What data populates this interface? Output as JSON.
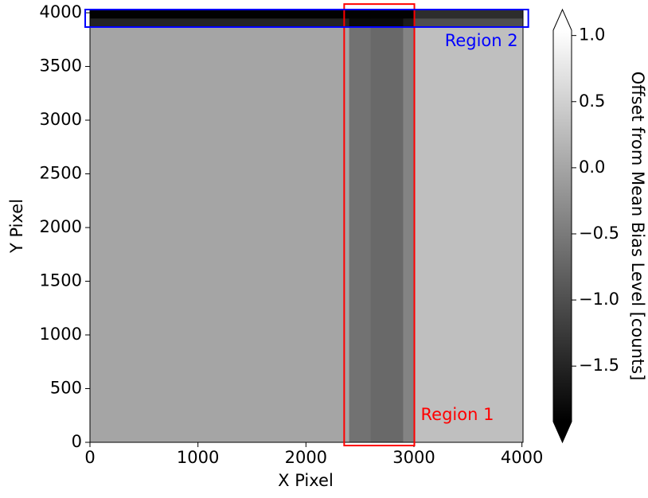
{
  "chart_data": {
    "type": "heatmap",
    "x_label": "X Pixel",
    "y_label": "Y Pixel",
    "colorbar_label": "Offset from Mean Bias Level [counts]",
    "x_edges": [
      0,
      2400,
      2600,
      2900,
      3000,
      4010
    ],
    "y_edges": [
      0,
      3870,
      3950,
      4030
    ],
    "z": [
      [
        0.0,
        -0.6,
        -0.7,
        -0.4,
        0.3
      ],
      [
        -1.5,
        -1.8,
        -1.8,
        -1.6,
        -1.0
      ],
      [
        -1.9,
        -1.9,
        -1.9,
        -1.9,
        -1.4
      ]
    ],
    "xlim": [
      0,
      4010
    ],
    "ylim": [
      0,
      4030
    ],
    "xticks": [
      0,
      1000,
      2000,
      3000,
      4000
    ],
    "yticks": [
      0,
      500,
      1000,
      1500,
      2000,
      2500,
      3000,
      3500,
      4000
    ],
    "clim": [
      -1.92,
      1.04
    ],
    "cticks": [
      {
        "value": -1.5,
        "label": "−1.5"
      },
      {
        "value": -1.0,
        "label": "−1.0"
      },
      {
        "value": -0.5,
        "label": "−0.5"
      },
      {
        "value": 0.0,
        "label": "0.0"
      },
      {
        "value": 0.5,
        "label": "0.5"
      },
      {
        "value": 1.0,
        "label": "1.0"
      }
    ],
    "colormap": [
      "#000000",
      "#ffffff"
    ],
    "regions": [
      {
        "name": "Region 1",
        "color": "#ff0000",
        "x": [
          2354,
          3004
        ],
        "y": [
          -30,
          4081
        ]
      },
      {
        "name": "Region 2",
        "color": "#0000ff",
        "x": [
          -44,
          4059
        ],
        "y": [
          3867,
          4030
        ]
      }
    ]
  }
}
